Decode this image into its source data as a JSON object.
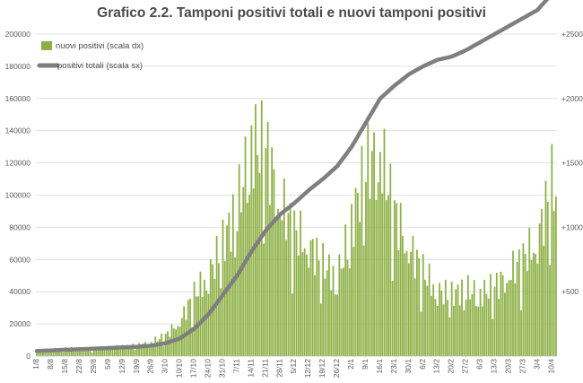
{
  "chart_data": {
    "type": "bar+line",
    "title": "Grafico 2.2. Tamponi positivi totali e nuovi tamponi positivi",
    "colors": {
      "bars": "#8db045",
      "line": "#7f7f7f",
      "grid": "#d9d9d9",
      "title": "#4a4a4a"
    },
    "legend": {
      "placement": "top-left",
      "bars": "nuovi positivi (scala dx)",
      "line": "positivi totali (scala sx)"
    },
    "y_left": {
      "range": [
        0,
        200000
      ],
      "ticks": [
        0,
        20000,
        40000,
        60000,
        80000,
        100000,
        120000,
        140000,
        160000,
        180000,
        200000
      ],
      "tick_labels": [
        "0",
        "20000",
        "40000",
        "60000",
        "80000",
        "100000",
        "120000",
        "140000",
        "160000",
        "180000",
        "200000"
      ]
    },
    "y_right": {
      "range": [
        0,
        2500
      ],
      "ticks": [
        500,
        1000,
        1500,
        2000,
        2500
      ],
      "tick_labels": [
        "+500",
        "+1000",
        "+1500",
        "+2000",
        "+2500"
      ]
    },
    "x_tick_labels": [
      "1/8",
      "8/8",
      "15/8",
      "22/8",
      "29/8",
      "5/9",
      "12/9",
      "19/9",
      "26/9",
      "3/10",
      "10/10",
      "17/10",
      "24/10",
      "31/10",
      "7/11",
      "14/11",
      "21/11",
      "28/11",
      "5/12",
      "12/12",
      "19/12",
      "26/12",
      "2/1",
      "9/1",
      "16/1",
      "23/1",
      "30/1",
      "6/2",
      "13/2",
      "20/2",
      "27/2",
      "6/3",
      "13/3",
      "20/3",
      "27/3",
      "3/4",
      "10/4"
    ],
    "x_start_date": "1/8",
    "days_total": 255,
    "series": [
      {
        "name": "nuovi positivi (scala dx)",
        "axis": "right",
        "kind": "bar",
        "weekly_anchor_values": [
          40,
          50,
          60,
          55,
          50,
          65,
          75,
          80,
          110,
          160,
          270,
          480,
          620,
          880,
          1150,
          1650,
          1620,
          1200,
          980,
          860,
          720,
          600,
          1020,
          1480,
          1580,
          1120,
          850,
          660,
          500,
          480,
          520,
          480,
          540,
          640,
          760,
          900,
          1350,
          1100
        ]
      },
      {
        "name": "positivi totali (scala sx)",
        "axis": "left",
        "kind": "line",
        "weekly_anchor_values": [
          3200,
          3500,
          3900,
          4300,
          4600,
          5000,
          5400,
          5800,
          6500,
          8000,
          11000,
          17000,
          26000,
          38000,
          50000,
          65000,
          78000,
          88000,
          95000,
          103000,
          110000,
          118000,
          130000,
          145000,
          160000,
          168000,
          175000,
          180000,
          184000,
          186000,
          190000,
          195000,
          200000,
          205000,
          210000,
          215000,
          225000,
          233000
        ]
      }
    ]
  }
}
